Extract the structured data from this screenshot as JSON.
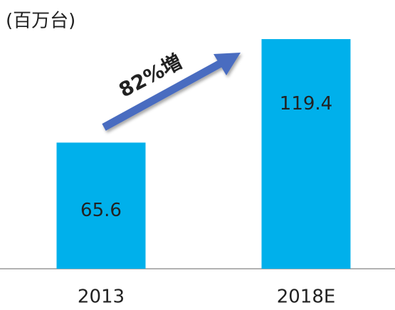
{
  "chart_data": {
    "type": "bar",
    "title": "(百万台)",
    "categories": [
      "2013",
      "2018E"
    ],
    "values": [
      65.6,
      119.4
    ],
    "color": "#00b0eb",
    "annotation": "82%増"
  }
}
